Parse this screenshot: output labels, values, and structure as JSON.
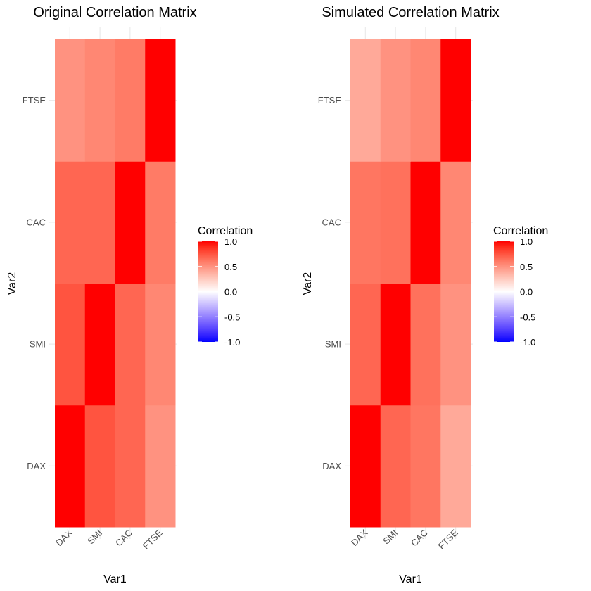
{
  "chart_data": [
    {
      "type": "heatmap",
      "title": "Original Correlation Matrix",
      "xlabel": "Var1",
      "ylabel": "Var2",
      "x_categories": [
        "DAX",
        "SMI",
        "CAC",
        "FTSE"
      ],
      "y_categories": [
        "DAX",
        "SMI",
        "CAC",
        "FTSE"
      ],
      "values": [
        [
          1.0,
          0.75,
          0.68,
          0.5
        ],
        [
          0.75,
          1.0,
          0.68,
          0.55
        ],
        [
          0.68,
          0.68,
          1.0,
          0.6
        ],
        [
          0.5,
          0.55,
          0.6,
          1.0
        ]
      ],
      "legend": {
        "title": "Correlation",
        "ticks": [
          "1.0",
          "0.5",
          "0.0",
          "-0.5",
          "-1.0"
        ],
        "tick_values": [
          1,
          0.5,
          0,
          -0.5,
          -1
        ],
        "range": [
          -1,
          1
        ],
        "low_color": "#0000FF",
        "mid_color": "#FFFFFF",
        "high_color": "#FF0000",
        "placement": "right"
      }
    },
    {
      "type": "heatmap",
      "title": "Simulated Correlation Matrix",
      "xlabel": "Var1",
      "ylabel": "Var2",
      "x_categories": [
        "DAX",
        "SMI",
        "CAC",
        "FTSE"
      ],
      "y_categories": [
        "DAX",
        "SMI",
        "CAC",
        "FTSE"
      ],
      "values": [
        [
          1.0,
          0.68,
          0.62,
          0.4
        ],
        [
          0.68,
          1.0,
          0.64,
          0.5
        ],
        [
          0.62,
          0.64,
          1.0,
          0.55
        ],
        [
          0.4,
          0.5,
          0.55,
          1.0
        ]
      ],
      "legend": {
        "title": "Correlation",
        "ticks": [
          "1.0",
          "0.5",
          "0.0",
          "-0.5",
          "-1.0"
        ],
        "tick_values": [
          1,
          0.5,
          0,
          -0.5,
          -1
        ],
        "range": [
          -1,
          1
        ],
        "low_color": "#0000FF",
        "mid_color": "#FFFFFF",
        "high_color": "#FF0000",
        "placement": "right"
      }
    }
  ]
}
